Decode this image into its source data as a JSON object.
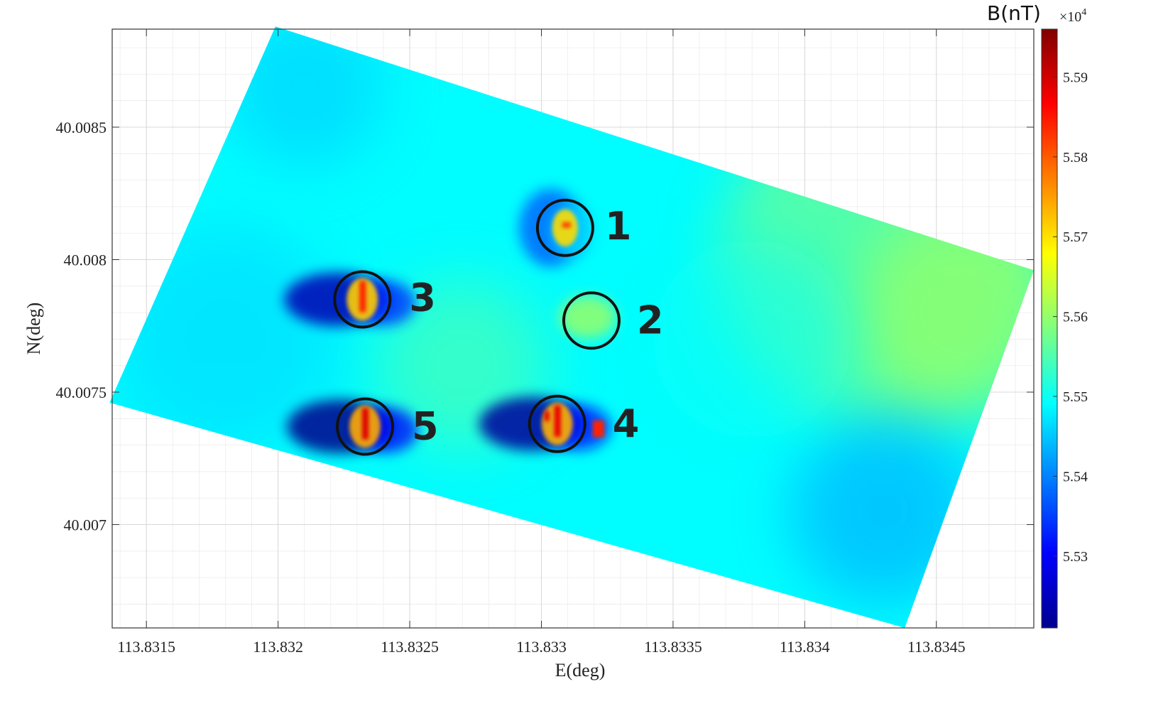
{
  "chart_data": {
    "type": "heatmap",
    "title": "",
    "xlabel": "E(deg)",
    "ylabel": "N(deg)",
    "xlim": [
      113.83137,
      113.83487
    ],
    "ylim": [
      40.00661,
      40.00887
    ],
    "x_ticks": [
      "113.8315",
      "113.832",
      "113.8325",
      "113.833",
      "113.8335",
      "113.834",
      "113.8345"
    ],
    "x_tick_values": [
      113.8315,
      113.832,
      113.8325,
      113.833,
      113.8335,
      113.834,
      113.8345
    ],
    "y_ticks": [
      "40.007",
      "40.0075",
      "40.008",
      "40.0085"
    ],
    "y_tick_values": [
      40.007,
      40.0075,
      40.008,
      40.0085
    ],
    "grid": true,
    "colorbar": {
      "title": "B(nT)",
      "multiplier": "×10",
      "exponent": "4",
      "range": [
        5.521,
        5.596
      ],
      "ticks": [
        "5.53",
        "5.54",
        "5.55",
        "5.56",
        "5.57",
        "5.58",
        "5.59"
      ],
      "tick_values": [
        5.53,
        5.54,
        5.55,
        5.56,
        5.57,
        5.58,
        5.59
      ],
      "colormap": "jet"
    },
    "survey_area_corners": [
      {
        "x": 113.83199,
        "y": 40.00888
      },
      {
        "x": 113.83487,
        "y": 40.00796
      },
      {
        "x": 113.83438,
        "y": 40.00661
      },
      {
        "x": 113.83136,
        "y": 40.00746
      }
    ],
    "background_value": 5.549,
    "anomalies": [
      {
        "label": "1",
        "x": 113.83309,
        "y": 40.00812,
        "peak": 5.582,
        "low": 5.538
      },
      {
        "label": "2",
        "x": 113.83319,
        "y": 40.00777,
        "peak": 5.561,
        "low": 5.548
      },
      {
        "label": "3",
        "x": 113.83232,
        "y": 40.00785,
        "peak": 5.584,
        "low": 5.525
      },
      {
        "label": "4",
        "x": 113.83306,
        "y": 40.00738,
        "peak": 5.588,
        "low": 5.523
      },
      {
        "label": "5",
        "x": 113.83233,
        "y": 40.00737,
        "peak": 5.589,
        "low": 5.522
      }
    ]
  }
}
